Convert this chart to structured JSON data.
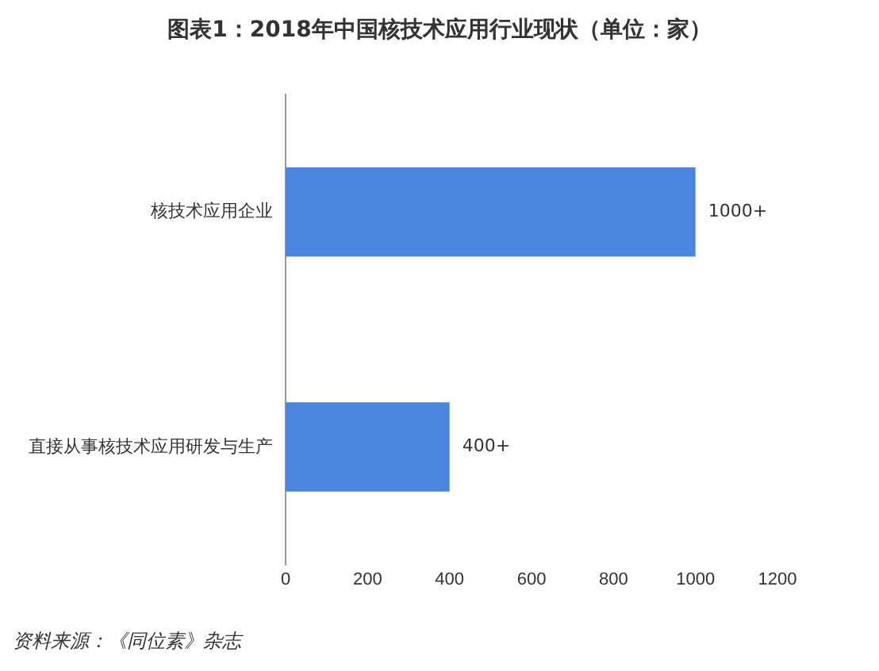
{
  "chart_data": {
    "type": "bar",
    "orientation": "horizontal",
    "title": "图表1：2018年中国核技术应用行业现状（单位：家）",
    "categories": [
      "核技术应用企业",
      "直接从事核技术应用研发与生产"
    ],
    "values": [
      1000,
      400
    ],
    "value_labels": [
      "1000+",
      "400+"
    ],
    "color": "#4a86e0",
    "xlim": [
      0,
      1200
    ],
    "xticks": [
      0,
      200,
      400,
      600,
      800,
      1000,
      1200
    ],
    "grid": false,
    "annotations": [
      "资料来源：《同位素》杂志"
    ]
  }
}
